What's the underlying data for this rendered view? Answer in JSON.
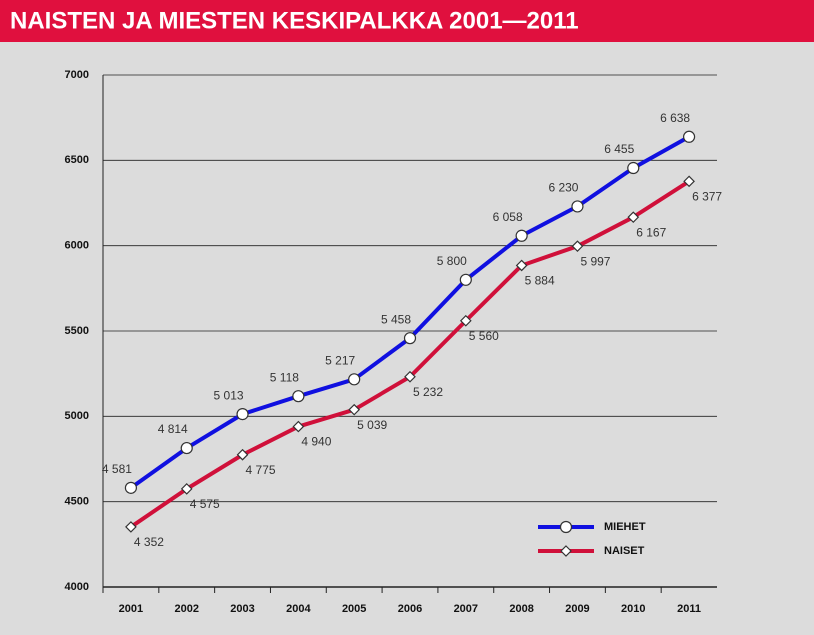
{
  "chart_data": {
    "type": "line",
    "title": "NAISTEN JA MIESTEN KESKIPALKKA 2001—2011",
    "categories": [
      "2001",
      "2002",
      "2003",
      "2004",
      "2005",
      "2006",
      "2007",
      "2008",
      "2009",
      "2010",
      "2011"
    ],
    "series": [
      {
        "name": "MIEHET",
        "color": "#1010e0",
        "marker": "circle",
        "values": [
          4581,
          4814,
          5013,
          5118,
          5217,
          5458,
          5800,
          6058,
          6230,
          6455,
          6638
        ],
        "value_labels": [
          "4 581",
          "4 814",
          "5 013",
          "5 118",
          "5 217",
          "5 458",
          "5 800",
          "6 058",
          "6 230",
          "6 455",
          "6 638"
        ]
      },
      {
        "name": "NAISET",
        "color": "#d0103a",
        "marker": "diamond",
        "values": [
          4352,
          4575,
          4775,
          4940,
          5039,
          5232,
          5560,
          5884,
          5997,
          6167,
          6377
        ],
        "value_labels": [
          "4 352",
          "4 575",
          "4 775",
          "4 940",
          "5 039",
          "5 232",
          "5 560",
          "5 884",
          "5 997",
          "6 167",
          "6 377"
        ]
      }
    ],
    "ylim": [
      4000,
      7000
    ],
    "yticks": [
      4000,
      4500,
      5000,
      5500,
      6000,
      6500,
      7000
    ],
    "grid": true,
    "legend": "lower right"
  }
}
